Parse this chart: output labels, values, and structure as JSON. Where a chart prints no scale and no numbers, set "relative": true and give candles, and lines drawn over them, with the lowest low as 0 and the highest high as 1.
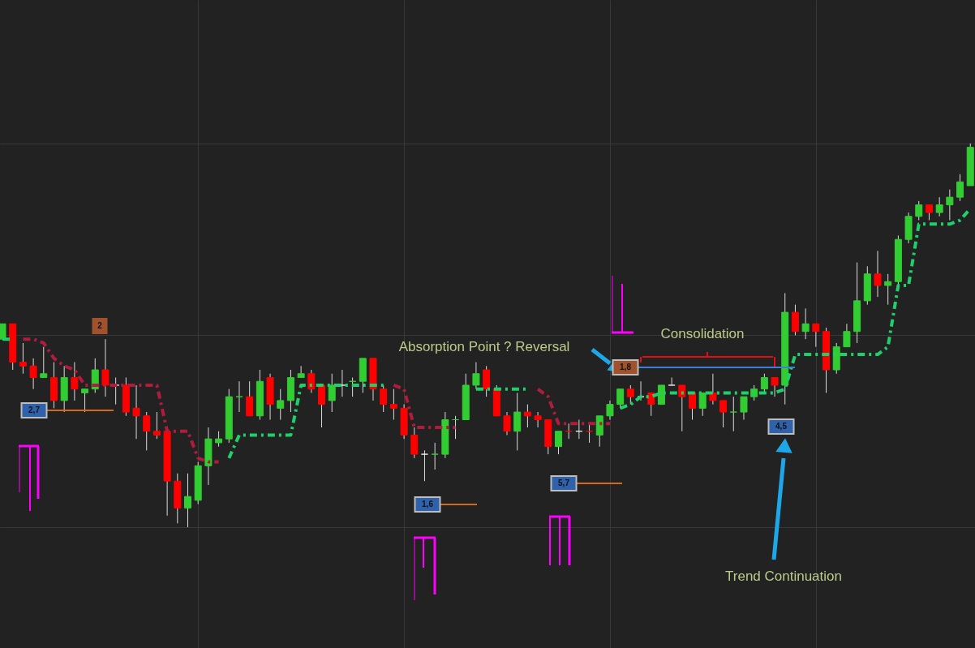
{
  "chart_data": {
    "type": "candlestick",
    "relative": true,
    "grid": true,
    "line_style": "dashed",
    "categories": [
      null,
      null,
      null,
      null,
      null,
      null,
      null,
      null,
      null,
      null,
      null,
      null,
      null,
      null,
      null,
      null,
      null,
      null,
      null,
      null,
      null,
      null,
      null,
      null,
      null,
      null,
      null,
      null,
      null,
      null,
      null,
      null,
      null,
      null,
      null,
      null,
      null,
      null,
      null,
      null,
      null,
      null,
      null,
      null,
      null,
      null,
      null,
      null,
      null,
      null,
      null,
      null,
      null,
      null,
      null,
      null,
      null,
      null,
      null,
      null,
      null,
      null,
      null,
      null,
      null,
      null,
      null,
      null,
      null,
      null,
      null,
      null,
      null,
      null,
      null,
      null,
      null,
      null,
      null,
      null,
      null,
      null,
      null,
      null,
      null,
      null,
      null,
      null,
      null,
      null,
      null,
      null,
      null,
      null,
      null
    ],
    "ohlc": [
      [
        0.49,
        0.53,
        0.49,
        0.53
      ],
      [
        0.53,
        0.53,
        0.41,
        0.43
      ],
      [
        0.43,
        0.48,
        0.4,
        0.42
      ],
      [
        0.42,
        0.44,
        0.36,
        0.39
      ],
      [
        0.39,
        0.47,
        0.39,
        0.4
      ],
      [
        0.39,
        0.43,
        0.31,
        0.33
      ],
      [
        0.33,
        0.42,
        0.3,
        0.39
      ],
      [
        0.39,
        0.43,
        0.33,
        0.36
      ],
      [
        0.35,
        0.36,
        0.3,
        0.36
      ],
      [
        0.36,
        0.44,
        0.35,
        0.41
      ],
      [
        0.41,
        0.49,
        0.34,
        0.37
      ],
      [
        0.37,
        0.39,
        0.32,
        0.37
      ],
      [
        0.37,
        0.39,
        0.29,
        0.3
      ],
      [
        0.31,
        0.37,
        0.23,
        0.29
      ],
      [
        0.29,
        0.3,
        0.2,
        0.25
      ],
      [
        0.25,
        0.3,
        0.23,
        0.24
      ],
      [
        0.25,
        0.25,
        0.03,
        0.12
      ],
      [
        0.12,
        0.14,
        0.01,
        0.05
      ],
      [
        0.05,
        0.14,
        0.0,
        0.08
      ],
      [
        0.07,
        0.17,
        0.06,
        0.16
      ],
      [
        0.16,
        0.26,
        0.11,
        0.23
      ],
      [
        0.22,
        0.25,
        0.21,
        0.23
      ],
      [
        0.23,
        0.36,
        0.22,
        0.34
      ],
      [
        0.34,
        0.38,
        0.3,
        0.34
      ],
      [
        0.34,
        0.38,
        0.29,
        0.29
      ],
      [
        0.29,
        0.41,
        0.28,
        0.38
      ],
      [
        0.39,
        0.4,
        0.28,
        0.32
      ],
      [
        0.31,
        0.36,
        0.28,
        0.33
      ],
      [
        0.33,
        0.41,
        0.3,
        0.39
      ],
      [
        0.39,
        0.42,
        0.39,
        0.4
      ],
      [
        0.4,
        0.41,
        0.35,
        0.36
      ],
      [
        0.37,
        0.37,
        0.26,
        0.32
      ],
      [
        0.33,
        0.4,
        0.3,
        0.37
      ],
      [
        0.37,
        0.41,
        0.34,
        0.37
      ],
      [
        0.38,
        0.39,
        0.34,
        0.38
      ],
      [
        0.38,
        0.44,
        0.35,
        0.44
      ],
      [
        0.44,
        0.44,
        0.33,
        0.36
      ],
      [
        0.36,
        0.37,
        0.3,
        0.32
      ],
      [
        0.32,
        0.36,
        0.28,
        0.31
      ],
      [
        0.31,
        0.32,
        0.23,
        0.24
      ],
      [
        0.24,
        0.26,
        0.18,
        0.19
      ],
      [
        0.19,
        0.2,
        0.12,
        0.19
      ],
      [
        0.19,
        0.22,
        0.15,
        0.19
      ],
      [
        0.19,
        0.3,
        0.18,
        0.28
      ],
      [
        0.28,
        0.29,
        0.23,
        0.28
      ],
      [
        0.28,
        0.4,
        0.28,
        0.37
      ],
      [
        0.37,
        0.43,
        0.36,
        0.4
      ],
      [
        0.41,
        0.42,
        0.34,
        0.36
      ],
      [
        0.36,
        0.37,
        0.29,
        0.29
      ],
      [
        0.29,
        0.3,
        0.24,
        0.25
      ],
      [
        0.25,
        0.35,
        0.2,
        0.3
      ],
      [
        0.3,
        0.32,
        0.26,
        0.29
      ],
      [
        0.29,
        0.3,
        0.26,
        0.28
      ],
      [
        0.28,
        0.28,
        0.19,
        0.21
      ],
      [
        0.21,
        0.25,
        0.19,
        0.25
      ],
      [
        0.25,
        0.27,
        0.23,
        0.25
      ],
      [
        0.25,
        0.28,
        0.23,
        0.25
      ],
      [
        0.25,
        0.27,
        0.22,
        0.25
      ],
      [
        0.24,
        0.29,
        0.21,
        0.29
      ],
      [
        0.29,
        0.33,
        0.28,
        0.32
      ],
      [
        0.32,
        0.36,
        0.31,
        0.36
      ],
      [
        0.36,
        0.37,
        0.32,
        0.34
      ],
      [
        0.34,
        0.38,
        0.33,
        0.34
      ],
      [
        0.35,
        0.35,
        0.29,
        0.32
      ],
      [
        0.32,
        0.37,
        0.32,
        0.37
      ],
      [
        0.37,
        0.39,
        0.37,
        0.37
      ],
      [
        0.37,
        0.37,
        0.25,
        0.34
      ],
      [
        0.35,
        0.35,
        0.28,
        0.31
      ],
      [
        0.31,
        0.35,
        0.29,
        0.35
      ],
      [
        0.35,
        0.4,
        0.32,
        0.33
      ],
      [
        0.33,
        0.33,
        0.26,
        0.3
      ],
      [
        0.3,
        0.34,
        0.25,
        0.3
      ],
      [
        0.3,
        0.34,
        0.28,
        0.34
      ],
      [
        0.34,
        0.37,
        0.33,
        0.36
      ],
      [
        0.36,
        0.4,
        0.35,
        0.39
      ],
      [
        0.39,
        0.39,
        0.34,
        0.37
      ],
      [
        0.37,
        0.61,
        0.32,
        0.56
      ],
      [
        0.56,
        0.58,
        0.5,
        0.51
      ],
      [
        0.51,
        0.57,
        0.49,
        0.53
      ],
      [
        0.53,
        0.53,
        0.47,
        0.51
      ],
      [
        0.51,
        0.52,
        0.35,
        0.41
      ],
      [
        0.41,
        0.48,
        0.4,
        0.47
      ],
      [
        0.47,
        0.53,
        0.47,
        0.51
      ],
      [
        0.51,
        0.69,
        0.48,
        0.59
      ],
      [
        0.59,
        0.68,
        0.58,
        0.66
      ],
      [
        0.66,
        0.72,
        0.6,
        0.63
      ],
      [
        0.63,
        0.66,
        0.58,
        0.64
      ],
      [
        0.64,
        0.76,
        0.63,
        0.75
      ],
      [
        0.75,
        0.82,
        0.74,
        0.81
      ],
      [
        0.81,
        0.85,
        0.8,
        0.84
      ],
      [
        0.84,
        0.84,
        0.8,
        0.82
      ],
      [
        0.82,
        0.86,
        0.81,
        0.84
      ],
      [
        0.84,
        0.88,
        0.8,
        0.86
      ],
      [
        0.86,
        0.92,
        0.85,
        0.9
      ],
      [
        0.89,
        1.0,
        0.89,
        0.99
      ]
    ],
    "colors": [
      "#32cd32",
      "#ff0000",
      "#ff0000",
      "#ff0000",
      "#32cd32",
      "#ff0000",
      "#32cd32",
      "#ff0000",
      "#32cd32",
      "#32cd32",
      "#ff0000",
      "#e8e8e8",
      "#ff0000",
      "#ff0000",
      "#ff0000",
      "#ff0000",
      "#ff0000",
      "#ff0000",
      "#32cd32",
      "#32cd32",
      "#32cd32",
      "#32cd32",
      "#32cd32",
      "#32cd32",
      "#ff0000",
      "#32cd32",
      "#ff0000",
      "#32cd32",
      "#32cd32",
      "#32cd32",
      "#ff0000",
      "#ff0000",
      "#32cd32",
      "#e8e8e8",
      "#32cd32",
      "#32cd32",
      "#ff0000",
      "#ff0000",
      "#ff0000",
      "#ff0000",
      "#ff0000",
      "#e8e8e8",
      "#32cd32",
      "#32cd32",
      "#32cd32",
      "#32cd32",
      "#32cd32",
      "#ff0000",
      "#ff0000",
      "#ff0000",
      "#32cd32",
      "#ff0000",
      "#ff0000",
      "#ff0000",
      "#32cd32",
      "#ff0000",
      "#e8e8e8",
      "#ff0000",
      "#32cd32",
      "#32cd32",
      "#32cd32",
      "#ff0000",
      "#e8e8e8",
      "#ff0000",
      "#32cd32",
      "#e8e8e8",
      "#ff0000",
      "#ff0000",
      "#32cd32",
      "#ff0000",
      "#ff0000",
      "#32cd32",
      "#32cd32",
      "#32cd32",
      "#32cd32",
      "#ff0000",
      "#32cd32",
      "#ff0000",
      "#32cd32",
      "#ff0000",
      "#ff0000",
      "#32cd32",
      "#32cd32",
      "#32cd32",
      "#32cd32",
      "#ff0000",
      "#32cd32",
      "#32cd32",
      "#32cd32",
      "#32cd32",
      "#ff0000",
      "#32cd32",
      "#32cd32",
      "#32cd32",
      "#32cd32"
    ],
    "series": [
      {
        "type": "line",
        "color": "#b01c3c",
        "values": [
          null,
          null,
          0.49,
          0.49,
          0.48,
          0.44,
          0.42,
          0.41,
          0.37,
          0.37,
          0.37,
          0.37,
          0.37,
          0.37,
          0.37,
          0.37,
          0.25,
          0.25,
          0.25,
          0.18,
          0.17,
          0.17,
          null,
          null,
          null,
          null,
          null,
          null,
          null,
          null,
          null,
          null,
          null,
          null,
          null,
          null,
          null,
          null,
          0.37,
          0.36,
          0.26,
          0.26,
          0.26,
          0.26,
          0.26,
          null,
          null,
          null,
          null,
          null,
          null,
          null,
          0.36,
          0.34,
          0.27,
          0.27,
          0.27,
          0.27,
          0.27,
          0.27,
          null,
          null,
          null,
          null,
          null,
          null,
          null,
          null,
          null,
          null,
          null,
          null,
          null,
          null,
          null,
          null,
          null,
          null,
          null,
          null,
          null,
          null,
          null,
          null,
          null,
          null,
          null,
          null,
          null,
          null,
          null,
          null,
          null,
          null,
          null
        ]
      },
      {
        "type": "line",
        "color": "#1ecf6a",
        "values": [
          0.49,
          0.49,
          null,
          null,
          null,
          null,
          null,
          null,
          null,
          null,
          null,
          null,
          null,
          null,
          null,
          null,
          null,
          null,
          null,
          null,
          null,
          null,
          0.18,
          0.24,
          0.24,
          0.24,
          0.24,
          0.24,
          0.24,
          0.37,
          0.37,
          0.37,
          0.37,
          0.37,
          0.37,
          0.37,
          0.37,
          0.37,
          null,
          null,
          null,
          null,
          null,
          null,
          null,
          null,
          0.36,
          0.36,
          0.36,
          0.36,
          0.36,
          0.36,
          null,
          null,
          null,
          null,
          null,
          null,
          null,
          null,
          0.31,
          0.32,
          0.34,
          0.34,
          0.35,
          0.35,
          0.35,
          0.35,
          0.35,
          0.35,
          0.35,
          0.35,
          0.35,
          0.35,
          0.35,
          0.35,
          0.36,
          0.45,
          0.45,
          0.45,
          0.45,
          0.45,
          0.45,
          0.45,
          0.45,
          0.45,
          0.47,
          0.63,
          0.63,
          0.79,
          0.79,
          0.79,
          0.79,
          0.8,
          0.83
        ]
      }
    ],
    "annotations": [
      "Absorption Point ? Reversal",
      "Consolidation",
      "Trend Continuation",
      "2",
      "2,7",
      "1,6",
      "5,7",
      "1,8",
      "4,5"
    ]
  }
}
